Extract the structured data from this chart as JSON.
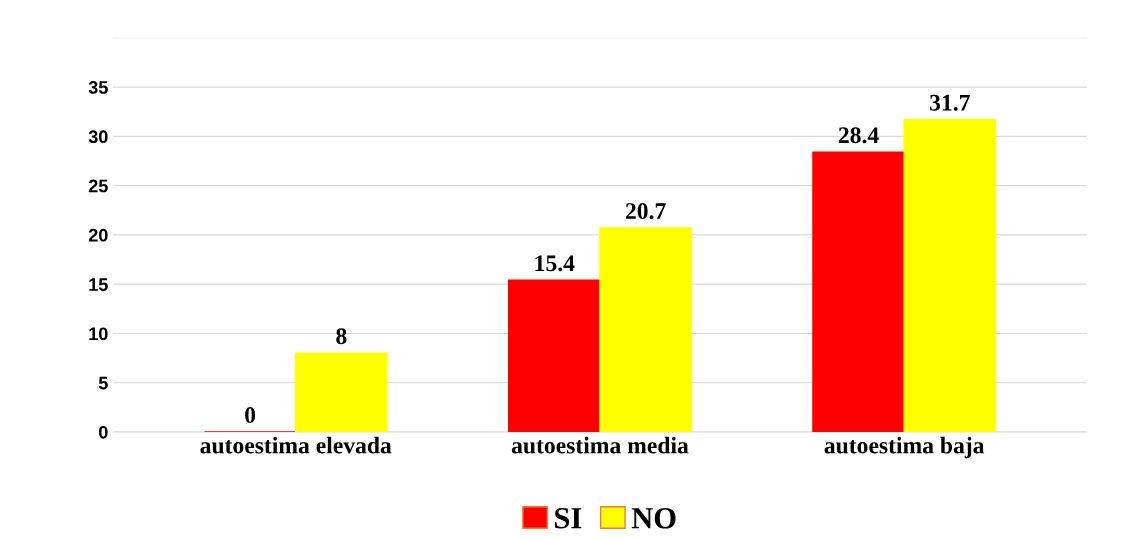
{
  "chart_data": {
    "type": "bar",
    "categories": [
      "autoestima elevada",
      "autoestima media",
      "autoestima baja"
    ],
    "series": [
      {
        "name": "SI",
        "color": "#ff0000",
        "values": [
          0,
          15.4,
          28.4
        ]
      },
      {
        "name": "NO",
        "color": "#ffff00",
        "values": [
          8,
          20.7,
          31.7
        ]
      }
    ],
    "ylim": [
      0,
      40
    ],
    "yticks": [
      0,
      5,
      10,
      15,
      20,
      25,
      30,
      35,
      {
        "value": 40,
        "label": null
      }
    ],
    "grid": "y",
    "legend": "bottom",
    "data_labels": true
  }
}
